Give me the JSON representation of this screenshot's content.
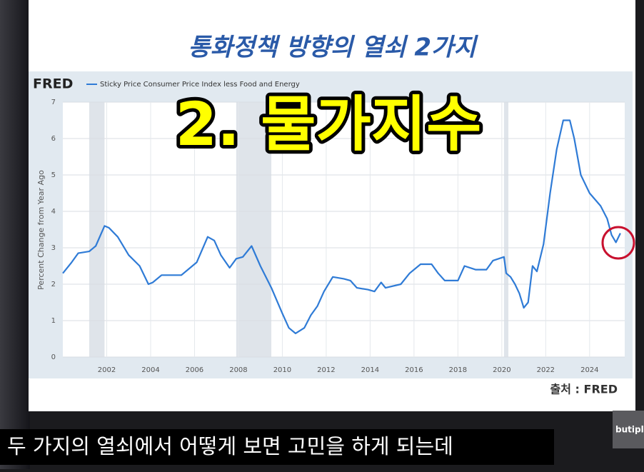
{
  "slide_title": "통화정책 방향의 열쇠 2가지",
  "overlay_text": "2. 물가지수",
  "source": "출처 : FRED",
  "caption": "두 가지의 열쇠에서 어떻게 보면 고민을 하게 되는데",
  "channel_logo": "butipl",
  "chart_data": {
    "type": "line",
    "logo": "FRED",
    "ylabel": "Percent Change from Year Ago",
    "x": [
      2000.0,
      2000.4,
      2000.7,
      2001.2,
      2001.5,
      2001.9,
      2002.1,
      2002.5,
      2003.0,
      2003.5,
      2003.9,
      2004.1,
      2004.5,
      2005.0,
      2005.4,
      2006.1,
      2006.6,
      2006.9,
      2007.2,
      2007.6,
      2007.9,
      2008.2,
      2008.6,
      2009.0,
      2009.5,
      2010.0,
      2010.3,
      2010.6,
      2011.0,
      2011.3,
      2011.6,
      2011.9,
      2012.3,
      2012.8,
      2013.1,
      2013.4,
      2013.9,
      2014.2,
      2014.5,
      2014.7,
      2015.4,
      2015.8,
      2016.3,
      2016.8,
      2017.1,
      2017.4,
      2018.0,
      2018.3,
      2018.8,
      2019.3,
      2019.6,
      2020.1,
      2020.2,
      2020.4,
      2020.6,
      2020.8,
      2021.0,
      2021.2,
      2021.4,
      2021.6,
      2021.9,
      2022.2,
      2022.5,
      2022.8,
      2023.1,
      2023.3,
      2023.6,
      2024.0,
      2024.5,
      2024.8,
      2025.0,
      2025.2,
      2025.4
    ],
    "series": [
      {
        "name": "Sticky Price Consumer Price Index less Food and Energy",
        "color": "#2f7bd6",
        "values": [
          2.3,
          2.6,
          2.85,
          2.9,
          3.05,
          3.6,
          3.55,
          3.3,
          2.8,
          2.5,
          2.0,
          2.05,
          2.25,
          2.25,
          2.25,
          2.6,
          3.3,
          3.2,
          2.8,
          2.45,
          2.7,
          2.75,
          3.05,
          2.5,
          1.9,
          1.2,
          0.8,
          0.65,
          0.8,
          1.15,
          1.4,
          1.8,
          2.2,
          2.15,
          2.1,
          1.9,
          1.85,
          1.8,
          2.05,
          1.9,
          2.0,
          2.3,
          2.55,
          2.55,
          2.3,
          2.1,
          2.1,
          2.5,
          2.4,
          2.4,
          2.65,
          2.75,
          2.3,
          2.2,
          2.0,
          1.75,
          1.35,
          1.5,
          2.5,
          2.35,
          3.1,
          4.5,
          5.7,
          6.5,
          6.5,
          6.0,
          5.0,
          4.5,
          4.15,
          3.8,
          3.35,
          3.15,
          3.4
        ]
      }
    ],
    "recessions": [
      [
        2001.2,
        2001.9
      ],
      [
        2007.9,
        2009.5
      ],
      [
        2020.1,
        2020.3
      ]
    ],
    "xlim": [
      2000,
      2025.6
    ],
    "xticks": [
      2002,
      2004,
      2006,
      2008,
      2010,
      2012,
      2014,
      2016,
      2018,
      2020,
      2022,
      2024
    ],
    "ylim": [
      0,
      7
    ],
    "yticks": [
      0,
      1,
      2,
      3,
      4,
      5,
      6,
      7
    ],
    "grid": true
  }
}
